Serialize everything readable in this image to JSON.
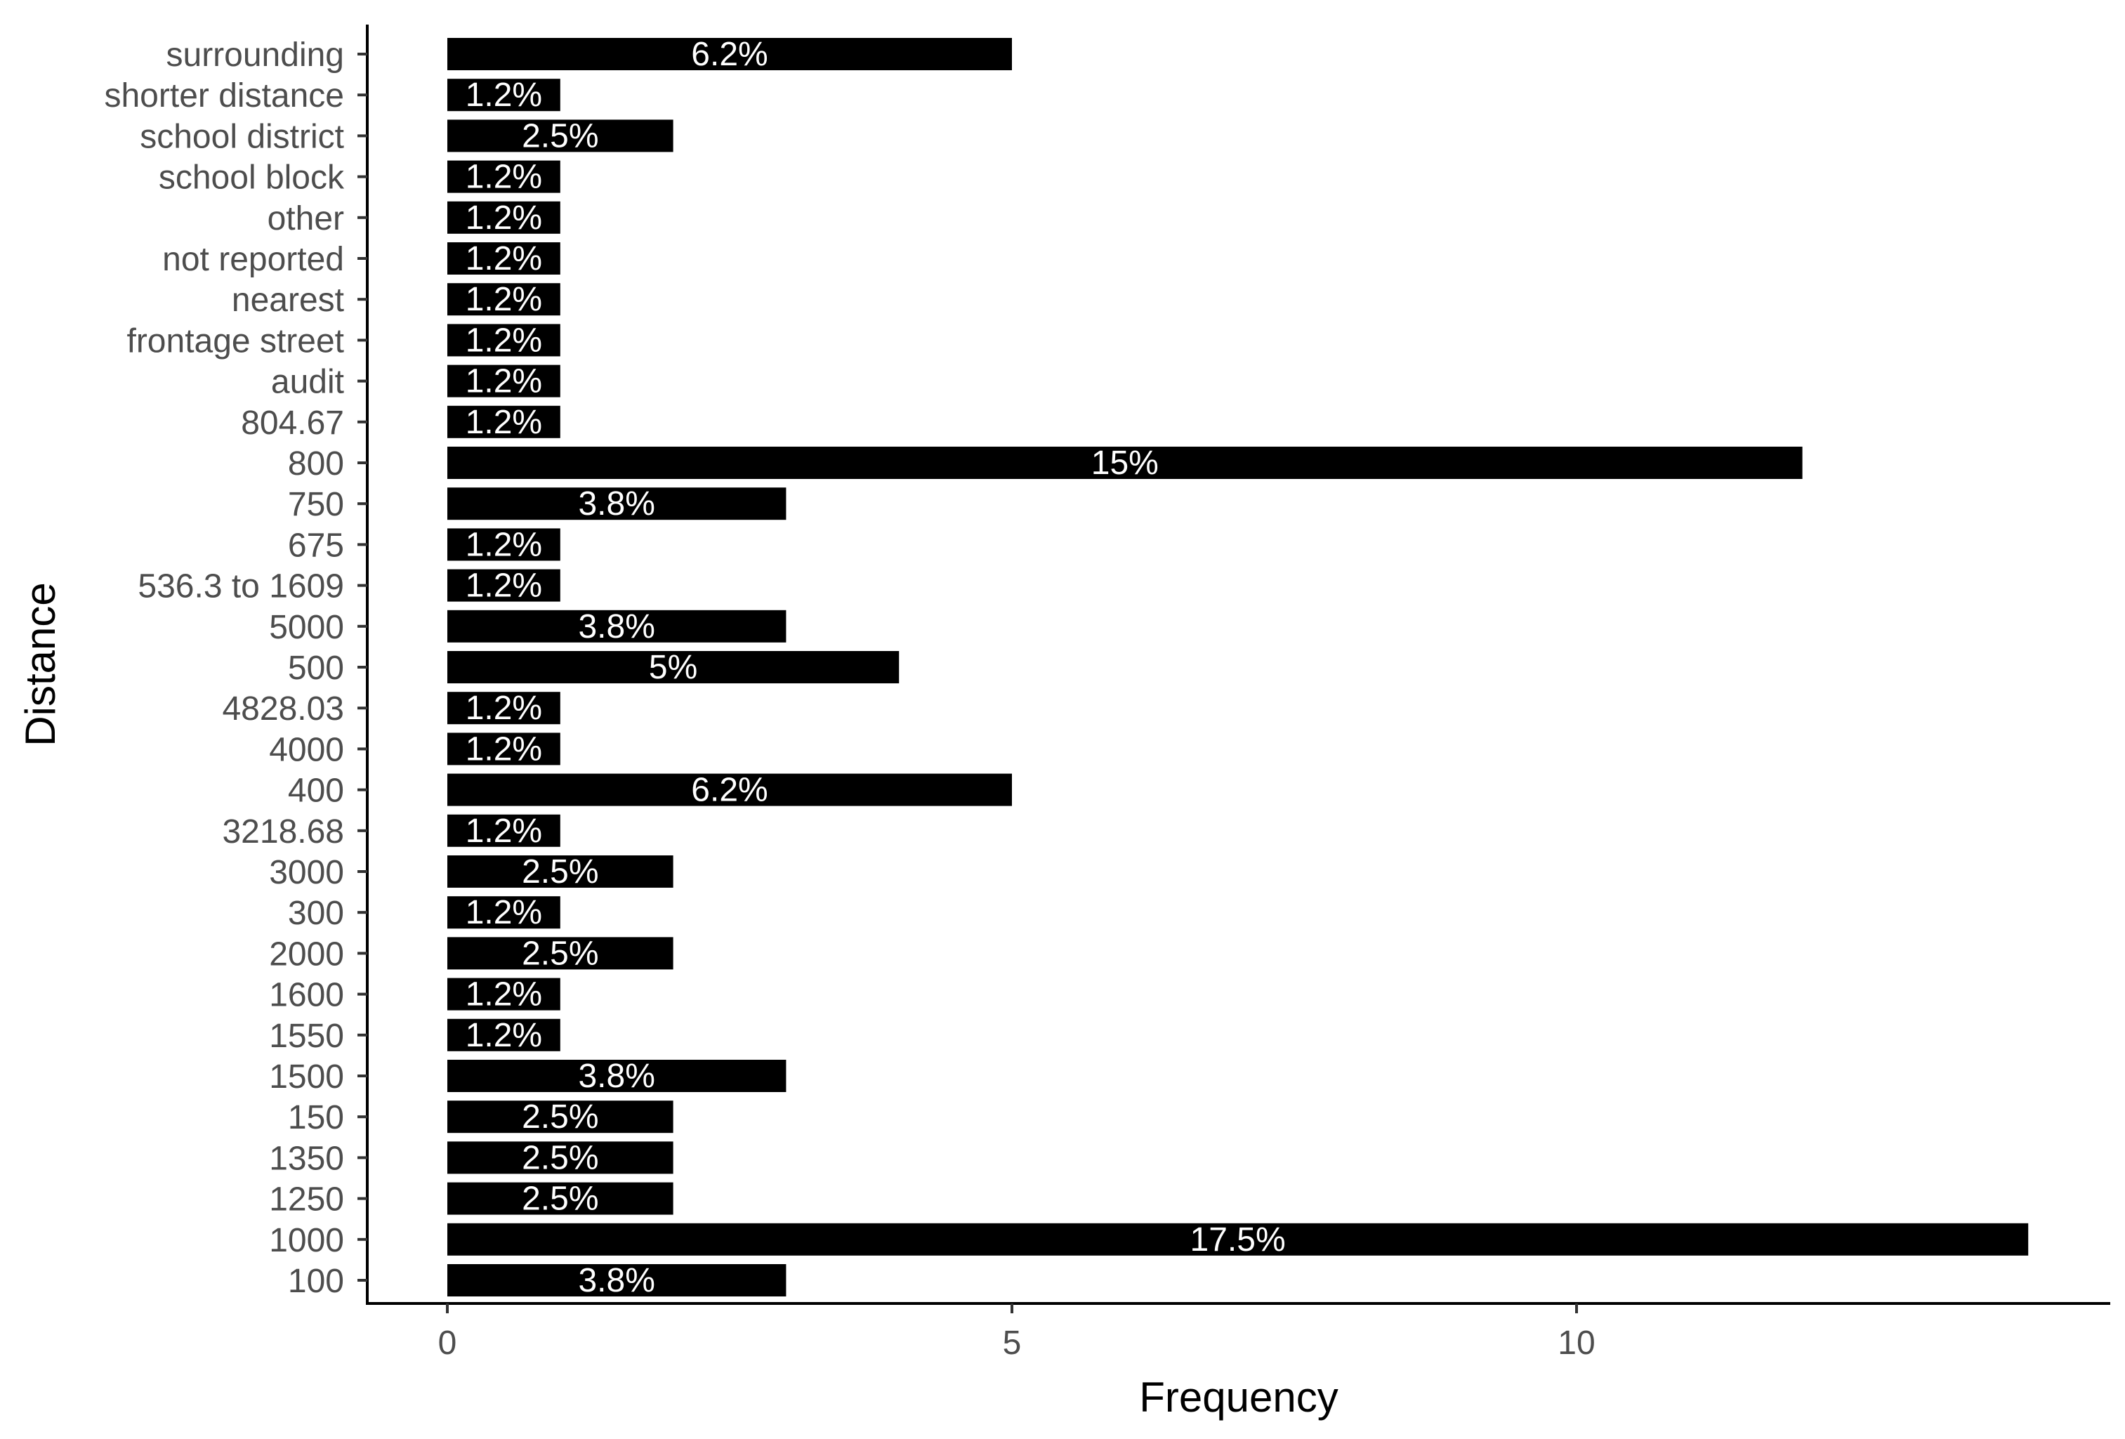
{
  "chart_data": {
    "type": "bar",
    "orientation": "horizontal",
    "xlabel": "Frequency",
    "ylabel": "Distance",
    "xlim": [
      0,
      14
    ],
    "xticks": [
      0,
      5,
      10
    ],
    "grid": false,
    "bar_color": "#000000",
    "label_color": "#ffffff",
    "categories": [
      "100",
      "1000",
      "1250",
      "1350",
      "150",
      "1500",
      "1550",
      "1600",
      "2000",
      "300",
      "3000",
      "3218.68",
      "400",
      "4000",
      "4828.03",
      "500",
      "5000",
      "536.3  to 1609",
      "675",
      "750",
      "800",
      "804.67",
      "audit",
      "frontage street",
      "nearest",
      "not reported",
      "other",
      "school block",
      "school district",
      "shorter distance",
      "surrounding"
    ],
    "values": [
      3,
      14,
      2,
      2,
      2,
      3,
      1,
      1,
      2,
      1,
      2,
      1,
      5,
      1,
      1,
      4,
      3,
      1,
      1,
      3,
      12,
      1,
      1,
      1,
      1,
      1,
      1,
      1,
      2,
      1,
      5
    ],
    "labels": [
      "3.8%",
      "17.5%",
      "2.5%",
      "2.5%",
      "2.5%",
      "3.8%",
      "1.2%",
      "1.2%",
      "2.5%",
      "1.2%",
      "2.5%",
      "1.2%",
      "6.2%",
      "1.2%",
      "1.2%",
      "5%",
      "3.8%",
      "1.2%",
      "1.2%",
      "3.8%",
      "15%",
      "1.2%",
      "1.2%",
      "1.2%",
      "1.2%",
      "1.2%",
      "1.2%",
      "1.2%",
      "2.5%",
      "1.2%",
      "6.2%"
    ]
  }
}
